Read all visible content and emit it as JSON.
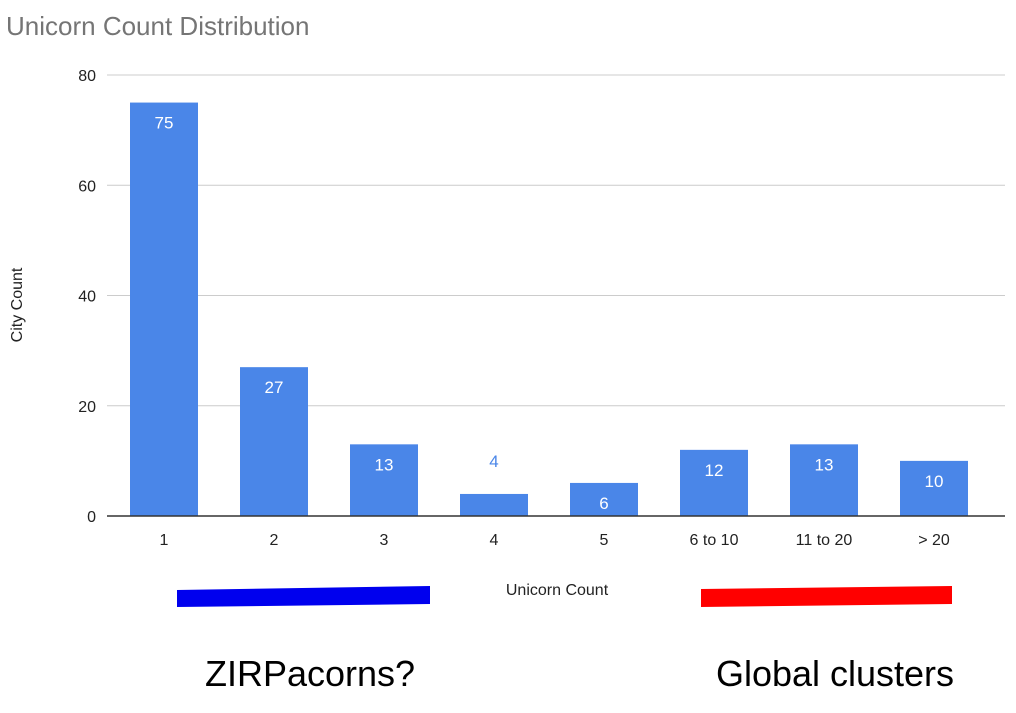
{
  "chart_data": {
    "type": "bar",
    "title": "Unicorn Count Distribution",
    "xlabel": "Unicorn Count",
    "ylabel": "City Count",
    "categories": [
      "1",
      "2",
      "3",
      "4",
      "5",
      "6 to 10",
      "11 to 20",
      "> 20"
    ],
    "values": [
      75,
      27,
      13,
      4,
      6,
      12,
      13,
      10
    ],
    "data_labels": [
      "75",
      "27",
      "13",
      "4",
      "6",
      "12",
      "13",
      "10"
    ],
    "ylim": [
      0,
      80
    ],
    "yticks": [
      "0",
      "20",
      "40",
      "60",
      "80"
    ],
    "grid": true,
    "bar_color": "#4a86e8",
    "legend": null
  },
  "annotations": [
    {
      "text": "ZIRPacorns?",
      "color": "#0000ee"
    },
    {
      "text": "Global clusters",
      "color": "#ff0000"
    }
  ]
}
